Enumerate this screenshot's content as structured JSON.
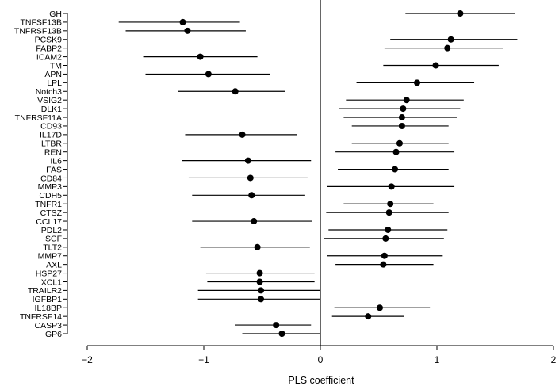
{
  "chart_data": {
    "type": "forest",
    "xlabel": "PLS coefficient",
    "ylabel": "",
    "title": "",
    "xlim": [
      -2,
      2
    ],
    "xticks": [
      -2,
      -1,
      0,
      1,
      2
    ],
    "xtick_labels": [
      "−2",
      "−1",
      "0",
      "1",
      "2"
    ],
    "reference_line": 0,
    "grid": false,
    "marker_color": "#000000",
    "points": [
      {
        "label": "GH",
        "est": 1.2,
        "lo": 0.73,
        "hi": 1.67
      },
      {
        "label": "TNFSF13B",
        "est": -1.18,
        "lo": -1.73,
        "hi": -0.69
      },
      {
        "label": "TNFRSF13B",
        "est": -1.14,
        "lo": -1.67,
        "hi": -0.64
      },
      {
        "label": "PCSK9",
        "est": 1.12,
        "lo": 0.6,
        "hi": 1.69
      },
      {
        "label": "FABP2",
        "est": 1.09,
        "lo": 0.55,
        "hi": 1.57
      },
      {
        "label": "ICAM2",
        "est": -1.03,
        "lo": -1.52,
        "hi": -0.54
      },
      {
        "label": "TM",
        "est": 0.99,
        "lo": 0.54,
        "hi": 1.53
      },
      {
        "label": "APN",
        "est": -0.96,
        "lo": -1.5,
        "hi": -0.43
      },
      {
        "label": "LPL",
        "est": 0.83,
        "lo": 0.31,
        "hi": 1.32
      },
      {
        "label": "Notch3",
        "est": -0.73,
        "lo": -1.22,
        "hi": -0.3
      },
      {
        "label": "VSIG2",
        "est": 0.74,
        "lo": 0.22,
        "hi": 1.23
      },
      {
        "label": "DLK1",
        "est": 0.71,
        "lo": 0.16,
        "hi": 1.2
      },
      {
        "label": "TNFRSF11A",
        "est": 0.7,
        "lo": 0.2,
        "hi": 1.17
      },
      {
        "label": "CD93",
        "est": 0.7,
        "lo": 0.27,
        "hi": 1.1
      },
      {
        "label": "IL17D",
        "est": -0.67,
        "lo": -1.16,
        "hi": -0.2
      },
      {
        "label": "LTBR",
        "est": 0.68,
        "lo": 0.27,
        "hi": 1.1
      },
      {
        "label": "REN",
        "est": 0.65,
        "lo": 0.13,
        "hi": 1.15
      },
      {
        "label": "IL6",
        "est": -0.62,
        "lo": -1.19,
        "hi": -0.08
      },
      {
        "label": "FAS",
        "est": 0.64,
        "lo": 0.15,
        "hi": 1.1
      },
      {
        "label": "CD84",
        "est": -0.6,
        "lo": -1.13,
        "hi": -0.11
      },
      {
        "label": "MMP3",
        "est": 0.61,
        "lo": 0.06,
        "hi": 1.15
      },
      {
        "label": "CDH5",
        "est": -0.59,
        "lo": -1.1,
        "hi": -0.13
      },
      {
        "label": "TNFR1",
        "est": 0.6,
        "lo": 0.2,
        "hi": 0.97
      },
      {
        "label": "CTSZ",
        "est": 0.59,
        "lo": 0.05,
        "hi": 1.1
      },
      {
        "label": "CCL17",
        "est": -0.57,
        "lo": -1.1,
        "hi": -0.07
      },
      {
        "label": "PDL2",
        "est": 0.58,
        "lo": 0.07,
        "hi": 1.09
      },
      {
        "label": "SCF",
        "est": 0.56,
        "lo": 0.03,
        "hi": 1.06
      },
      {
        "label": "TLT2",
        "est": -0.54,
        "lo": -1.03,
        "hi": -0.09
      },
      {
        "label": "MMP7",
        "est": 0.55,
        "lo": 0.06,
        "hi": 1.05
      },
      {
        "label": "AXL",
        "est": 0.54,
        "lo": 0.13,
        "hi": 0.97
      },
      {
        "label": "HSP27",
        "est": -0.52,
        "lo": -0.98,
        "hi": -0.05
      },
      {
        "label": "XCL1",
        "est": -0.52,
        "lo": -0.97,
        "hi": -0.05
      },
      {
        "label": "TRAILR2",
        "est": -0.51,
        "lo": -1.05,
        "hi": 0.0
      },
      {
        "label": "IGFBP1",
        "est": -0.51,
        "lo": -1.05,
        "hi": 0.0
      },
      {
        "label": "IL18BP",
        "est": 0.51,
        "lo": 0.12,
        "hi": 0.94
      },
      {
        "label": "TNFRSF14",
        "est": 0.41,
        "lo": 0.1,
        "hi": 0.72
      },
      {
        "label": "CASP3",
        "est": -0.38,
        "lo": -0.73,
        "hi": -0.08
      },
      {
        "label": "GP6",
        "est": -0.33,
        "lo": -0.67,
        "hi": 0.0
      }
    ]
  }
}
